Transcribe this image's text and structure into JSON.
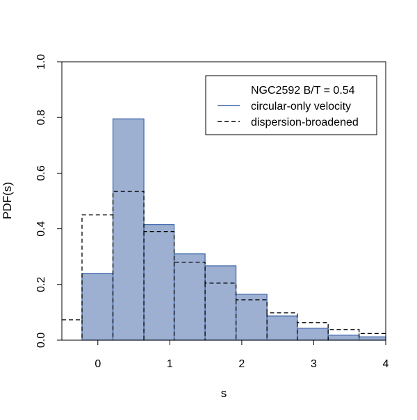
{
  "chart_data": {
    "type": "bar",
    "title": "",
    "xlabel": "s",
    "ylabel": "PDF(s)",
    "xlim": [
      -0.5,
      4.0
    ],
    "ylim": [
      0.0,
      1.0
    ],
    "xticks": [
      "0",
      "1",
      "2",
      "3",
      "4"
    ],
    "xtick_values": [
      0,
      1,
      2,
      3,
      4
    ],
    "yticks": [
      "0.0",
      "0.2",
      "0.4",
      "0.6",
      "0.8",
      "1.0"
    ],
    "ytick_values": [
      0.0,
      0.2,
      0.4,
      0.6,
      0.8,
      1.0
    ],
    "bin_edges": [
      -0.5,
      -0.22,
      0.21,
      0.64,
      1.06,
      1.49,
      1.92,
      2.35,
      2.77,
      3.2,
      3.63,
      4.0
    ],
    "series": [
      {
        "name": "circular-only velocity",
        "style": "filled-histogram",
        "values": [
          0.0,
          0.24,
          0.795,
          0.415,
          0.31,
          0.267,
          0.165,
          0.087,
          0.043,
          0.018,
          0.012
        ]
      },
      {
        "name": "dispersion-broadened",
        "style": "dashed-step",
        "values": [
          0.073,
          0.45,
          0.535,
          0.39,
          0.28,
          0.205,
          0.145,
          0.098,
          0.063,
          0.038,
          0.024
        ]
      }
    ],
    "legend": {
      "placement": "top-right",
      "title": "NGC2592 B/T = 0.54",
      "entries": [
        "circular-only velocity",
        "dispersion-broadened"
      ]
    },
    "colors": {
      "fill": "#9db0d2",
      "edge": "#3b64a8",
      "dashed": "#000000"
    },
    "grid": false
  }
}
